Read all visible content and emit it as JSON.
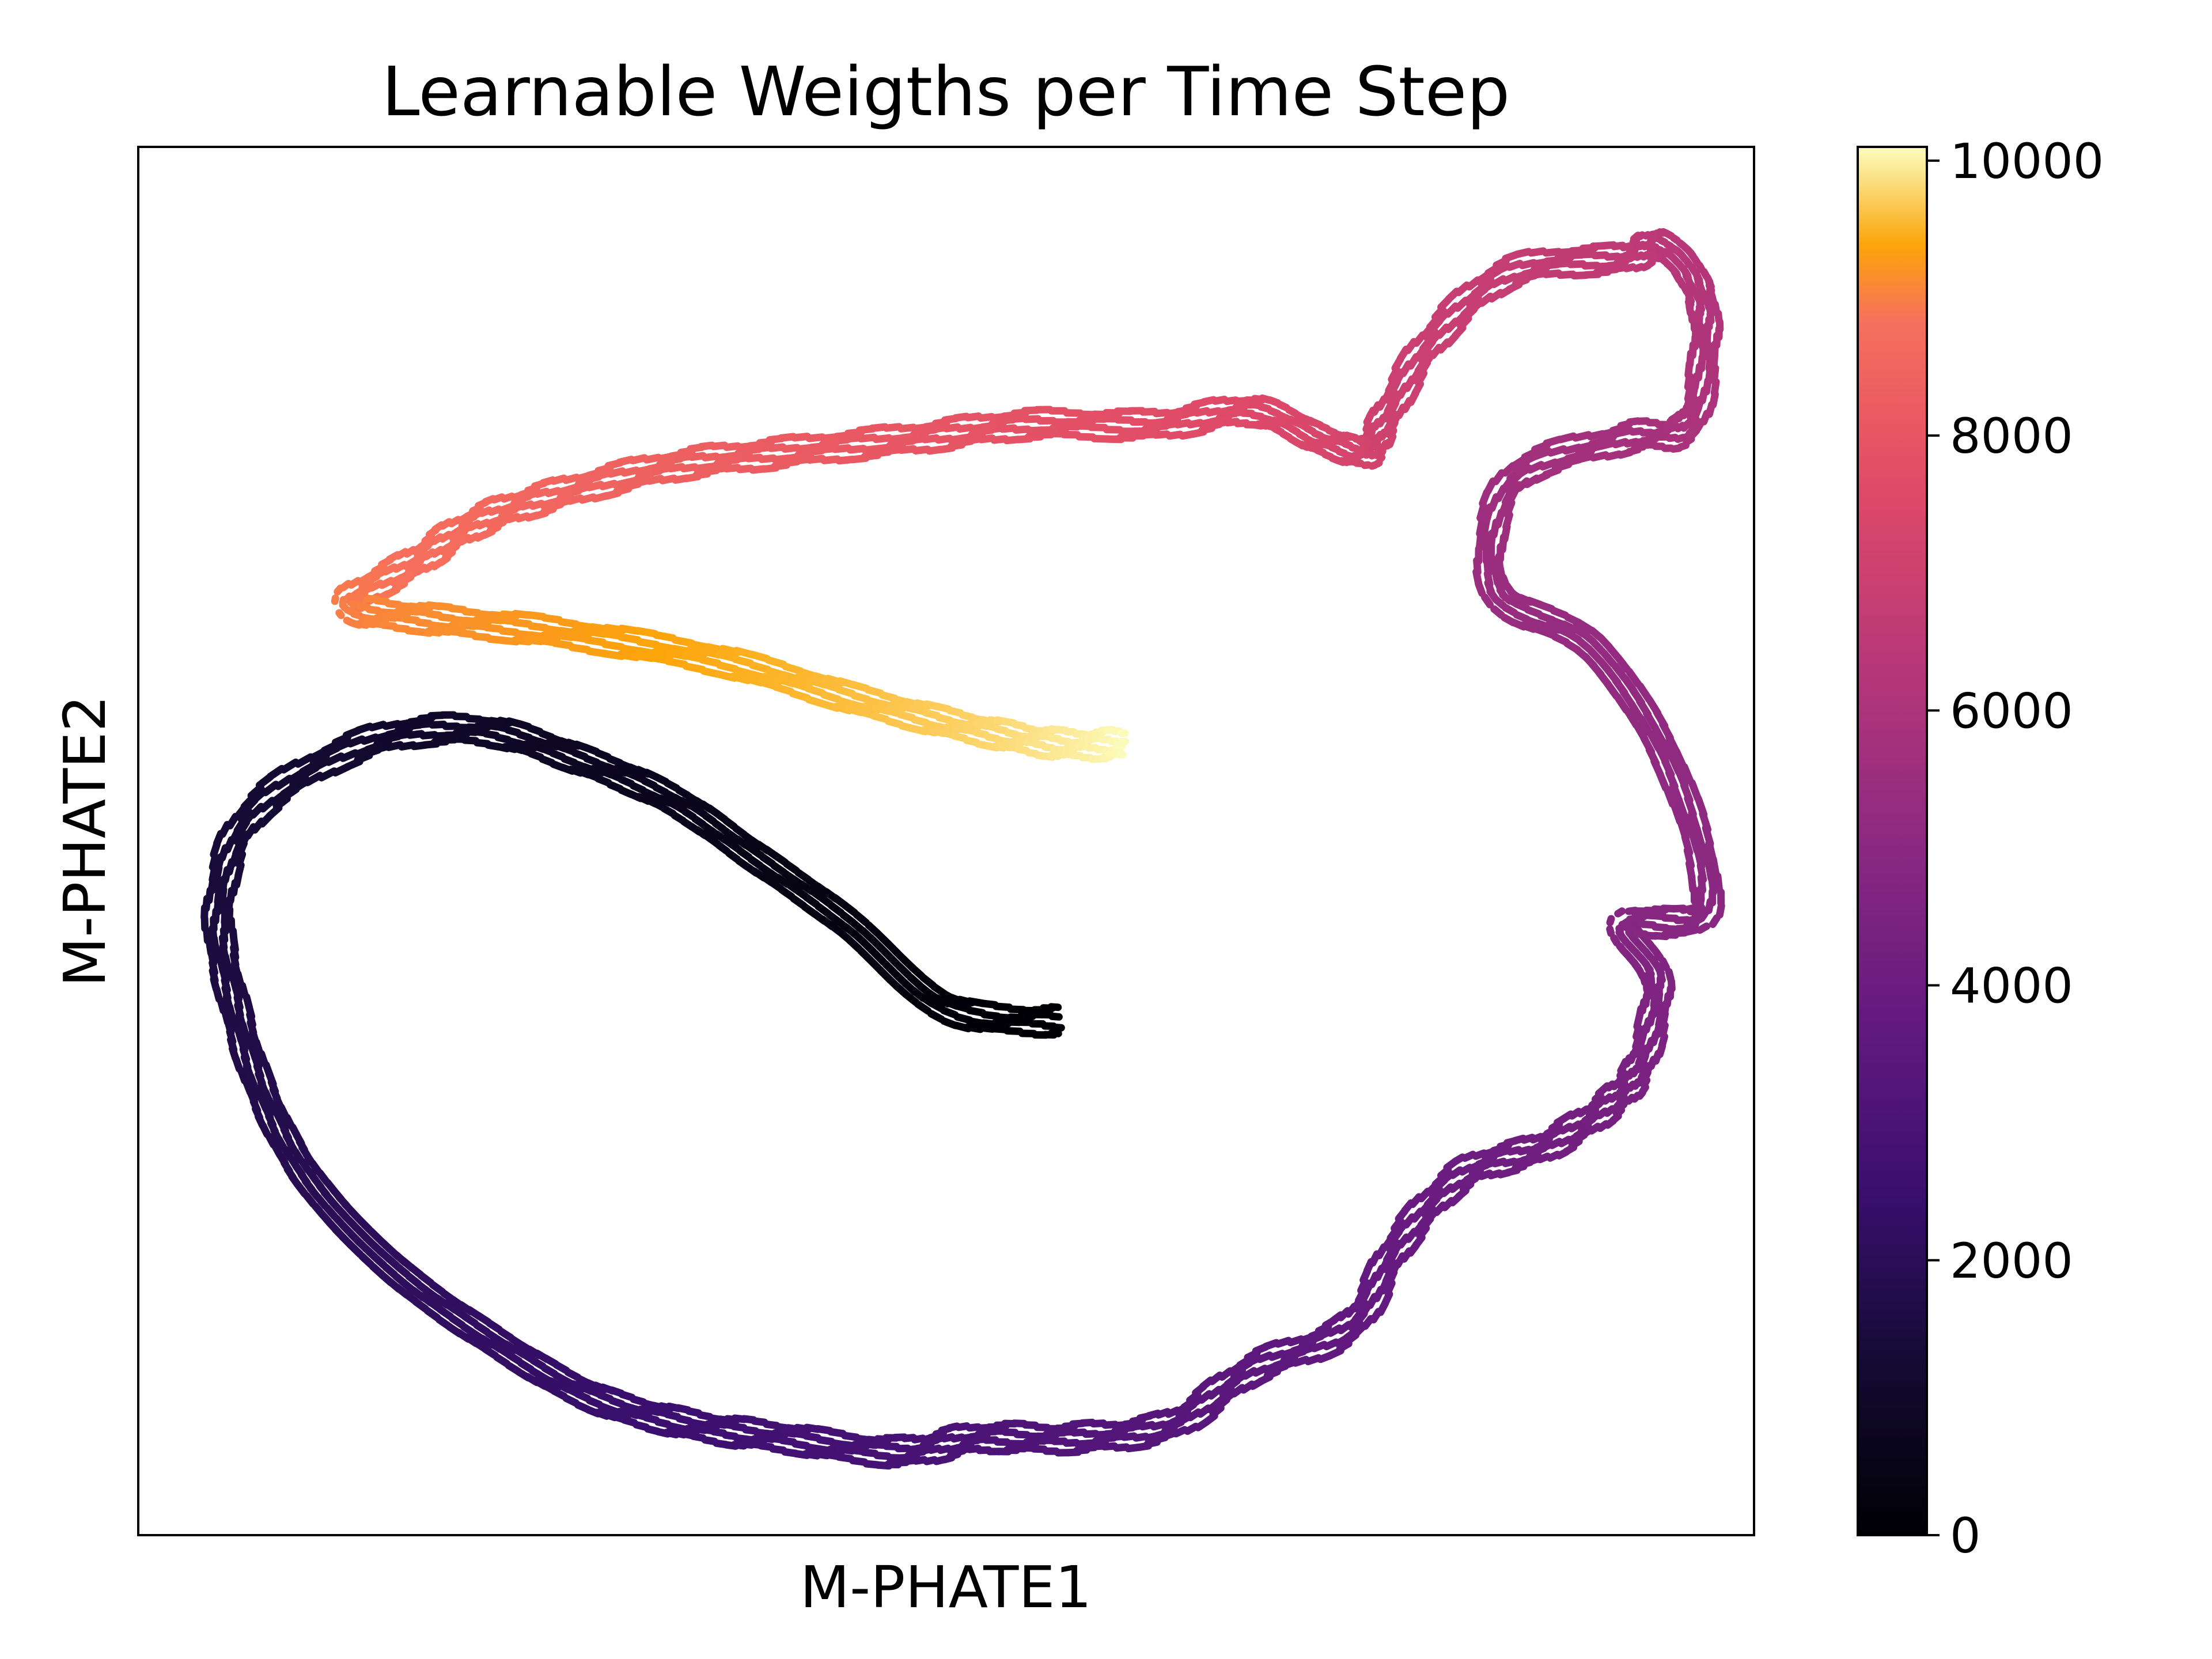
{
  "chart_data": {
    "type": "scatter",
    "title": "Learnable Weigths per Time Step",
    "xlabel": "M-PHATE1",
    "ylabel": "M-PHATE2",
    "x_ticks_visible": false,
    "y_ticks_visible": false,
    "colormap": "inferno",
    "colorbar": {
      "min": 0,
      "max": 10100,
      "ticks": [
        0,
        2000,
        4000,
        6000,
        8000,
        10000
      ],
      "tick_labels": [
        "0",
        "2000",
        "4000",
        "6000",
        "8000",
        "10000"
      ],
      "placement": "right"
    },
    "series": [
      {
        "strands": 4,
        "color_by": "time_step",
        "x": [
          0.57,
          0.5,
          0.44,
          0.38,
          0.33,
          0.27,
          0.21,
          0.14,
          0.07,
          0.05,
          0.06,
          0.08,
          0.11,
          0.16,
          0.22,
          0.28,
          0.34,
          0.4,
          0.47,
          0.52,
          0.58,
          0.64,
          0.69,
          0.75,
          0.78,
          0.82,
          0.87,
          0.91,
          0.93,
          0.94,
          0.92,
          0.97,
          0.95,
          0.9,
          0.84,
          0.85,
          0.92,
          0.96,
          0.97,
          0.96,
          0.94,
          0.92,
          0.85,
          0.8,
          0.77,
          0.76,
          0.73,
          0.69,
          0.63,
          0.55,
          0.48,
          0.4,
          0.33,
          0.26,
          0.21,
          0.17,
          0.13,
          0.18,
          0.26,
          0.36,
          0.45,
          0.52,
          0.57,
          0.61
        ],
        "y": [
          0.37,
          0.38,
          0.44,
          0.49,
          0.53,
          0.56,
          0.58,
          0.57,
          0.52,
          0.45,
          0.38,
          0.31,
          0.25,
          0.19,
          0.14,
          0.1,
          0.08,
          0.07,
          0.06,
          0.07,
          0.07,
          0.08,
          0.12,
          0.15,
          0.21,
          0.26,
          0.28,
          0.31,
          0.34,
          0.4,
          0.44,
          0.45,
          0.55,
          0.64,
          0.68,
          0.76,
          0.79,
          0.8,
          0.87,
          0.91,
          0.93,
          0.92,
          0.91,
          0.86,
          0.8,
          0.78,
          0.79,
          0.81,
          0.8,
          0.8,
          0.79,
          0.78,
          0.77,
          0.75,
          0.73,
          0.7,
          0.67,
          0.66,
          0.65,
          0.63,
          0.6,
          0.58,
          0.57,
          0.57
        ]
      }
    ]
  }
}
